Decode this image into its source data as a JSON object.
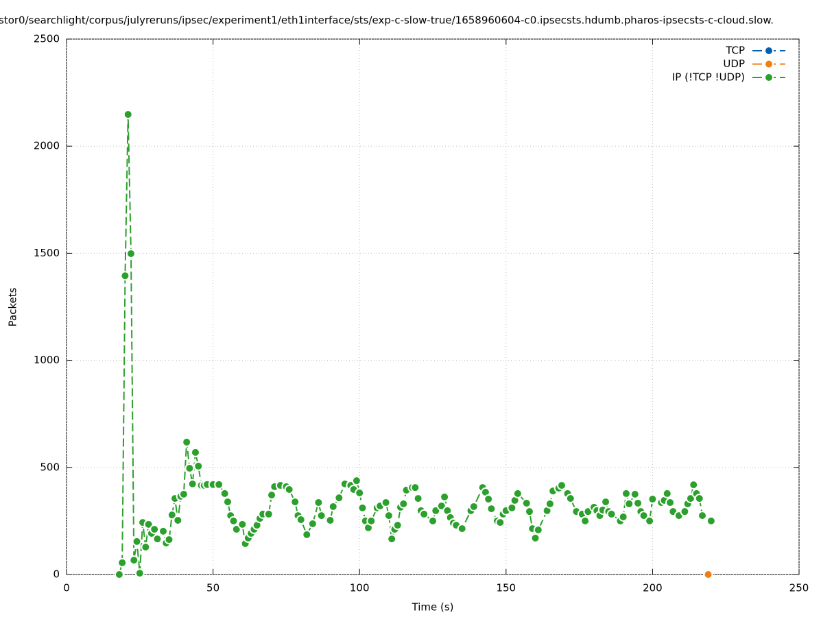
{
  "chart_data": {
    "type": "line",
    "title": "stor0/searchlight/corpus/julyreruns/ipsec/experiment1/eth1interface/sts/exp-c-slow-true/1658960604-c0.ipsecsts.hdumb.pharos-ipsecsts-c-cloud.slow.",
    "x_label": "Time (s)",
    "y_label": "Packets",
    "xlim": [
      0,
      250
    ],
    "xticks": [
      0,
      50,
      100,
      150,
      200,
      250
    ],
    "ylim": [
      0,
      2500
    ],
    "yticks": [
      0,
      500,
      1000,
      1500,
      2000,
      2500
    ],
    "grid": true,
    "legend": "top-right",
    "series": [
      {
        "name": "TCP",
        "color": "#0060ad",
        "x": [],
        "values": []
      },
      {
        "name": "UDP",
        "color": "#f07f11",
        "x": [
          219
        ],
        "values": [
          0
        ]
      },
      {
        "name": "IP (!TCP  !UDP)",
        "color": "#2ca02c",
        "x": [
          18,
          19,
          20,
          21,
          22,
          23,
          24,
          25,
          26,
          27,
          28,
          29,
          30,
          31,
          33,
          34,
          35,
          36,
          37,
          38,
          39,
          40,
          41,
          42,
          43,
          44,
          45,
          46,
          47,
          48,
          50,
          52,
          54,
          55,
          56,
          57,
          58,
          60,
          61,
          62,
          63,
          64,
          65,
          66,
          67,
          69,
          70,
          71,
          73,
          75,
          76,
          78,
          79,
          80,
          82,
          84,
          86,
          87,
          90,
          91,
          93,
          95,
          97,
          98,
          99,
          100,
          101,
          102,
          103,
          104,
          106,
          107,
          109,
          110,
          111,
          112,
          113,
          114,
          115,
          116,
          118,
          119,
          120,
          121,
          122,
          125,
          126,
          128,
          129,
          130,
          131,
          132,
          133,
          135,
          138,
          139,
          142,
          143,
          144,
          145,
          147,
          148,
          149,
          150,
          152,
          153,
          154,
          157,
          158,
          159,
          160,
          161,
          164,
          165,
          166,
          168,
          169,
          171,
          172,
          174,
          176,
          177,
          178,
          180,
          181,
          182,
          183,
          184,
          185,
          186,
          189,
          190,
          191,
          192,
          194,
          195,
          196,
          197,
          199,
          200,
          203,
          204,
          205,
          206,
          207,
          209,
          211,
          212,
          213,
          214,
          215,
          216,
          217,
          220
        ],
        "values": [
          0,
          55,
          1395,
          2148,
          1498,
          67,
          154,
          6,
          243,
          128,
          234,
          192,
          211,
          166,
          202,
          147,
          163,
          278,
          355,
          253,
          365,
          375,
          618,
          496,
          423,
          570,
          506,
          416,
          416,
          420,
          420,
          420,
          378,
          339,
          275,
          250,
          211,
          234,
          144,
          170,
          192,
          211,
          230,
          262,
          282,
          282,
          371,
          410,
          416,
          410,
          397,
          339,
          275,
          256,
          186,
          237,
          336,
          275,
          253,
          317,
          358,
          423,
          416,
          397,
          438,
          381,
          311,
          250,
          218,
          250,
          311,
          320,
          336,
          275,
          166,
          211,
          230,
          314,
          330,
          394,
          406,
          406,
          355,
          298,
          282,
          250,
          298,
          320,
          362,
          298,
          266,
          240,
          230,
          214,
          298,
          317,
          406,
          384,
          352,
          307,
          250,
          243,
          282,
          298,
          311,
          346,
          378,
          333,
          294,
          214,
          170,
          208,
          298,
          330,
          390,
          403,
          416,
          378,
          355,
          294,
          282,
          250,
          294,
          314,
          298,
          275,
          301,
          339,
          294,
          282,
          250,
          269,
          378,
          330,
          375,
          333,
          294,
          275,
          250,
          352,
          336,
          346,
          378,
          336,
          294,
          275,
          294,
          330,
          355,
          419,
          378,
          355,
          275,
          250
        ]
      }
    ]
  }
}
